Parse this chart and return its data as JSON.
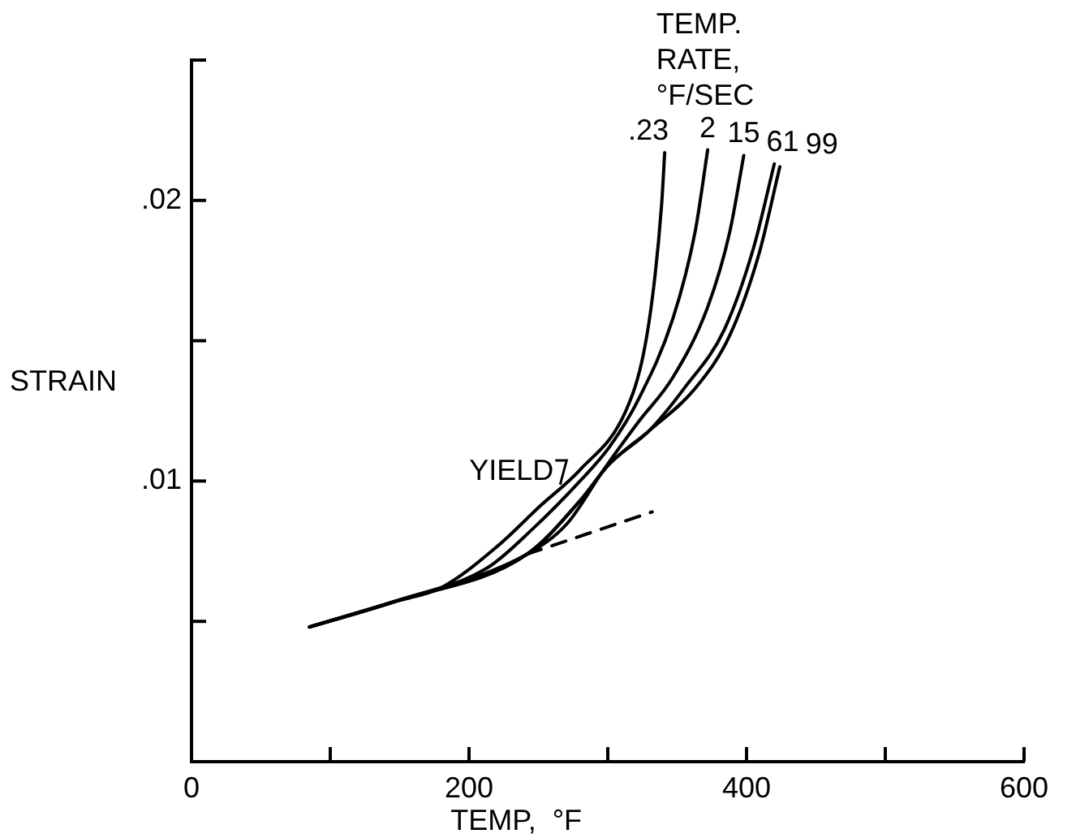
{
  "chart_data": {
    "type": "line",
    "xlabel": "TEMP,  °F",
    "ylabel": "STRAIN",
    "legend_title": "TEMP.\nRATE,\n°F/SEC",
    "annotations": [
      {
        "text": "YIELD",
        "x": 268,
        "y": 0.0101
      }
    ],
    "xlim": [
      0,
      600
    ],
    "xticks": [
      0,
      {
        "value": 100,
        "label": null
      },
      200,
      {
        "value": 300,
        "label": null
      },
      400,
      {
        "value": 500,
        "label": null
      },
      600
    ],
    "ylim": [
      0,
      0.025
    ],
    "yticks": [
      {
        "value": 0.005,
        "label": null
      },
      {
        "value": 0.01,
        "label": ".01"
      },
      {
        "value": 0.015,
        "label": null
      },
      {
        "value": 0.02,
        "label": ".02"
      },
      {
        "value": 0.025,
        "label": null
      }
    ],
    "grid": false,
    "legend": false,
    "marker": "none",
    "line_style": "solid",
    "series": [
      {
        "name": ".23",
        "color": "#000000",
        "x": [
          85,
          146,
          180,
          221,
          251,
          280,
          313,
          326,
          334,
          339,
          341
        ],
        "values": [
          0.0048,
          0.0057,
          0.0062,
          0.0077,
          0.0091,
          0.0104,
          0.0125,
          0.0146,
          0.0173,
          0.02,
          0.0217
        ]
      },
      {
        "name": "2",
        "color": "#000000",
        "x": [
          85,
          146,
          213,
          246,
          280,
          301,
          322,
          347,
          363,
          372
        ],
        "values": [
          0.0048,
          0.0057,
          0.0069,
          0.0083,
          0.01,
          0.0112,
          0.0129,
          0.0158,
          0.0189,
          0.0218
        ]
      },
      {
        "name": "15",
        "color": "#000000",
        "x": [
          85,
          146,
          242,
          271,
          297,
          322,
          347,
          372,
          388,
          398
        ],
        "values": [
          0.0048,
          0.0057,
          0.0074,
          0.0085,
          0.0104,
          0.0121,
          0.0137,
          0.0162,
          0.0189,
          0.0216
        ]
      },
      {
        "name": "61",
        "color": "#000000",
        "x": [
          85,
          146,
          242,
          280,
          301,
          330,
          355,
          384,
          405,
          420
        ],
        "values": [
          0.0048,
          0.0057,
          0.0074,
          0.0093,
          0.0106,
          0.0118,
          0.0133,
          0.0154,
          0.0183,
          0.0213
        ]
      },
      {
        "name": "99",
        "color": "#000000",
        "x": [
          85,
          146,
          242,
          280,
          301,
          330,
          363,
          388,
          409,
          424
        ],
        "values": [
          0.0048,
          0.0057,
          0.0074,
          0.0093,
          0.0106,
          0.0118,
          0.0133,
          0.0152,
          0.0181,
          0.0212
        ]
      },
      {
        "color": "#000000",
        "line_style": "dashed",
        "x": [
          242,
          332
        ],
        "values": [
          0.0074,
          0.0089
        ]
      }
    ]
  }
}
